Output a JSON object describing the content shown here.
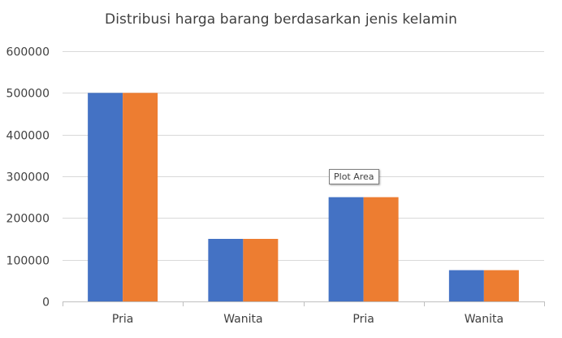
{
  "chart_data": {
    "type": "bar",
    "title": "Distribusi harga barang berdasarkan jenis kelamin",
    "categories": [
      "Pria",
      "Wanita",
      "Pria",
      "Wanita"
    ],
    "series": [
      {
        "color": "#4472C4",
        "values": [
          500000,
          150000,
          250000,
          75000
        ]
      },
      {
        "color": "#ED7D31",
        "values": [
          500000,
          150000,
          250000,
          75000
        ]
      }
    ],
    "yticks": [
      "0",
      "100000",
      "200000",
      "300000",
      "400000",
      "500000",
      "600000"
    ],
    "ylim": [
      0,
      600000
    ],
    "grid": true,
    "legend": "none",
    "gridline_color": "#D9D9D9",
    "axis_color": "#BFBFBF"
  },
  "tooltip": {
    "text": "Plot Area"
  }
}
